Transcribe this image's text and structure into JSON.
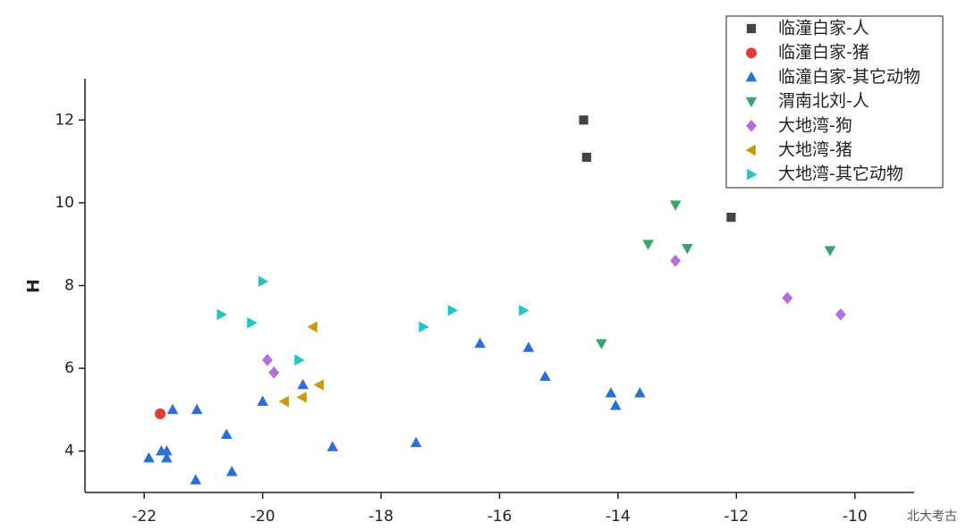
{
  "chart_data": {
    "type": "scatter",
    "ylabel": "H",
    "watermark": "北大考古",
    "xlim": [
      -23,
      -9
    ],
    "ylim": [
      3,
      13
    ],
    "xticks": [
      -22,
      -20,
      -18,
      -16,
      -14,
      -12,
      -10
    ],
    "yticks": [
      4,
      6,
      8,
      10,
      12
    ],
    "legend": "top-right",
    "series": [
      {
        "name": "临潼白家-人",
        "color": "#444444",
        "marker": "square",
        "x": [
          -14.58,
          -14.53,
          -12.09
        ],
        "values": [
          12,
          11.1,
          9.65
        ]
      },
      {
        "name": "临潼白家-猪",
        "color": "#e03c3c",
        "marker": "circle",
        "x": [
          -21.73
        ],
        "values": [
          4.9
        ]
      },
      {
        "name": "临潼白家-其它动物",
        "color": "#2a6fd6",
        "marker": "triangle-up",
        "x": [
          -21.92,
          -21.71,
          -21.62,
          -21.62,
          -21.52,
          -21.11,
          -21.13,
          -20.61,
          -20.52,
          -20.0,
          -19.32,
          -18.82,
          -17.41,
          -16.33,
          -15.51,
          -15.23,
          -14.12,
          -14.04,
          -13.63
        ],
        "values": [
          3.83,
          4.0,
          4.0,
          3.83,
          5.0,
          5.0,
          3.3,
          4.4,
          3.5,
          5.2,
          5.6,
          4.1,
          4.2,
          6.6,
          6.5,
          5.8,
          5.4,
          5.1,
          5.4
        ]
      },
      {
        "name": "渭南北刘-人",
        "color": "#3aa36a",
        "marker": "triangle-down",
        "x": [
          -13.03,
          -13.49,
          -12.83,
          -14.28,
          -10.42
        ],
        "values": [
          9.95,
          9.0,
          8.9,
          6.6,
          8.85
        ]
      },
      {
        "name": "大地湾-狗",
        "color": "#b56fd6",
        "marker": "diamond",
        "x": [
          -13.03,
          -11.14,
          -10.24,
          -19.92,
          -19.81
        ],
        "values": [
          8.6,
          7.7,
          7.3,
          6.2,
          5.9
        ]
      },
      {
        "name": "大地湾-猪",
        "color": "#c89a10",
        "marker": "triangle-left",
        "x": [
          -19.15,
          -19.04,
          -19.33,
          -19.63
        ],
        "values": [
          7.0,
          5.6,
          5.3,
          5.2
        ]
      },
      {
        "name": "大地湾-其它动物",
        "color": "#22c4c4",
        "marker": "triangle-right",
        "x": [
          -20.0,
          -20.7,
          -20.19,
          -19.39,
          -17.29,
          -16.8,
          -15.6
        ],
        "values": [
          8.1,
          7.3,
          7.1,
          6.2,
          7.0,
          7.4,
          7.4
        ]
      }
    ]
  }
}
